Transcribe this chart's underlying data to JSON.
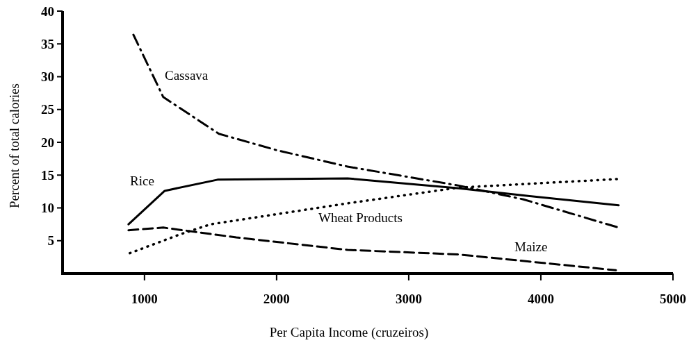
{
  "chart_data": {
    "type": "line",
    "xlabel": "Per Capita Income (cruzeiros)",
    "ylabel": "Percent of total calories",
    "xlim": [
      380,
      5000
    ],
    "xticks": [
      1000,
      2000,
      3000,
      4000,
      5000
    ],
    "ylim": [
      0,
      40
    ],
    "yticks": [
      5,
      10,
      15,
      20,
      25,
      30,
      35,
      40
    ],
    "grid": false,
    "marker": "none",
    "series": [
      {
        "name": "Cassava",
        "color": "#000000",
        "line_style": "dashdot",
        "x": [
          916,
          1142,
          1563,
          2000,
          2537,
          3379,
          3868,
          4589
        ],
        "values": [
          36.4,
          26.9,
          21.3,
          18.8,
          16.3,
          13.4,
          11.3,
          7.0
        ]
      },
      {
        "name": "Rice",
        "color": "#000000",
        "line_style": "solid",
        "x": [
          879,
          1153,
          1553,
          2537,
          3379,
          3868,
          4589
        ],
        "values": [
          7.5,
          12.6,
          14.3,
          14.5,
          13.0,
          11.9,
          10.4
        ]
      },
      {
        "name": "Wheat Products",
        "color": "#000000",
        "line_style": "dotted",
        "x": [
          889,
          1274,
          1500,
          2537,
          3379,
          4579
        ],
        "values": [
          3.1,
          6.0,
          7.5,
          10.7,
          13.1,
          14.4
        ]
      },
      {
        "name": "Maize",
        "color": "#000000",
        "line_style": "dashed",
        "x": [
          879,
          1142,
          1695,
          2537,
          3379,
          4568
        ],
        "values": [
          6.6,
          7.0,
          5.5,
          3.6,
          2.9,
          0.5
        ]
      }
    ]
  }
}
